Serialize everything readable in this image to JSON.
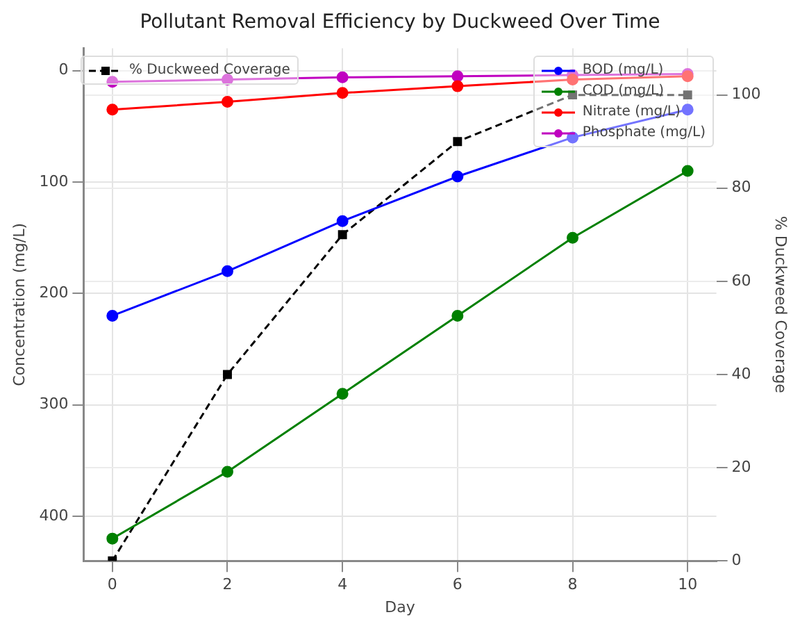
{
  "chart_data": {
    "type": "line",
    "title": "Pollutant Removal Efficiency by Duckweed Over Time",
    "xlabel": "Day",
    "ylabel": "Concentration (mg/L)",
    "y2label": "% Duckweed Coverage",
    "x": [
      0,
      2,
      4,
      6,
      8,
      10
    ],
    "xlim": [
      -0.5,
      10.5
    ],
    "xticks": [
      0,
      2,
      4,
      6,
      8,
      10
    ],
    "ylim": [
      440,
      -20
    ],
    "yticks": [
      0,
      100,
      200,
      300,
      400
    ],
    "y2lim": [
      0,
      110
    ],
    "y2ticks": [
      0,
      20,
      40,
      60,
      80,
      100
    ],
    "grid": true,
    "legend": "top right",
    "marker": "circle",
    "line_style": "solid",
    "series": [
      {
        "name": "BOD (mg/L)",
        "color": "#0000ff",
        "values": [
          220,
          180,
          135,
          95,
          60,
          35
        ]
      },
      {
        "name": "COD (mg/L)",
        "color": "#008000",
        "values": [
          420,
          360,
          290,
          220,
          150,
          90
        ]
      },
      {
        "name": "Nitrate (mg/L)",
        "color": "#ff0000",
        "values": [
          35,
          28,
          20,
          14,
          8,
          5
        ]
      },
      {
        "name": "Phosphate (mg/L)",
        "color": "#c000c0",
        "values": [
          10,
          8,
          6,
          5,
          4,
          3
        ]
      },
      {
        "name": "% Duckweed Coverage",
        "color": "#000000",
        "axis": "y2",
        "marker": "square",
        "line_style": "dashed",
        "values": [
          0,
          40,
          70,
          90,
          100,
          100
        ]
      }
    ]
  }
}
